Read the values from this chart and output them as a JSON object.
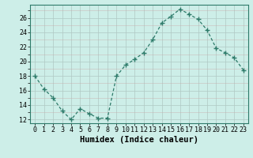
{
  "xlabel": "Humidex (Indice chaleur)",
  "ylabel": "",
  "x_values": [
    0,
    1,
    2,
    3,
    4,
    5,
    6,
    7,
    8,
    9,
    10,
    11,
    12,
    13,
    14,
    15,
    16,
    17,
    18,
    19,
    20,
    21,
    22,
    23
  ],
  "y_values": [
    18,
    16.2,
    15,
    13.2,
    12,
    13.5,
    12.8,
    12.2,
    12.2,
    18,
    19.5,
    20.3,
    21.2,
    23.0,
    25.3,
    26.2,
    27.2,
    26.5,
    25.8,
    24.3,
    21.8,
    21.2,
    20.5,
    18.8
  ],
  "line_color": "#2e7b6a",
  "marker": "+",
  "marker_size": 4,
  "bg_color": "#cdeee8",
  "grid_major_color": "#b8d8d2",
  "grid_minor_color": "#cce8e2",
  "ylim": [
    11.5,
    27.8
  ],
  "xlim": [
    -0.5,
    23.5
  ],
  "yticks": [
    12,
    14,
    16,
    18,
    20,
    22,
    24,
    26
  ],
  "xticks": [
    0,
    1,
    2,
    3,
    4,
    5,
    6,
    7,
    8,
    9,
    10,
    11,
    12,
    13,
    14,
    15,
    16,
    17,
    18,
    19,
    20,
    21,
    22,
    23
  ],
  "xtick_labels": [
    "0",
    "1",
    "2",
    "3",
    "4",
    "5",
    "6",
    "7",
    "8",
    "9",
    "10",
    "11",
    "12",
    "13",
    "14",
    "15",
    "16",
    "17",
    "18",
    "19",
    "20",
    "21",
    "22",
    "23"
  ],
  "label_fontsize": 7.5,
  "tick_fontsize": 6.0,
  "axis_color": "#2e7b6a"
}
